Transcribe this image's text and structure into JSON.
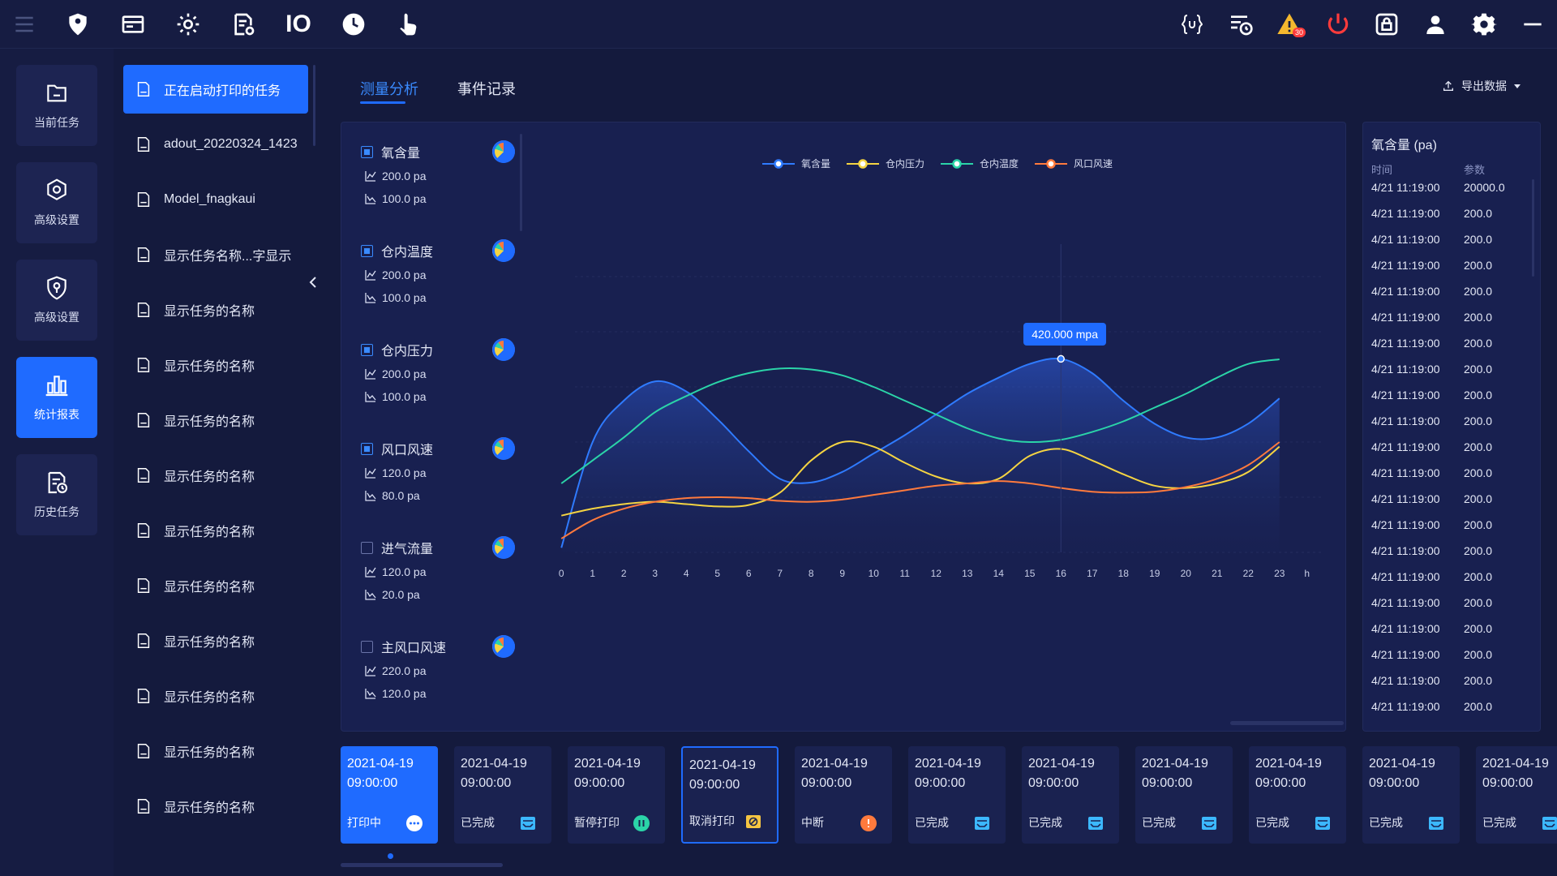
{
  "topbar": {
    "left_icons": [
      "menu-icon",
      "location-pin-icon",
      "card-icon",
      "settings-icon",
      "document-settings-icon",
      "io-icon",
      "clock-icon",
      "hand-touch-icon"
    ],
    "io_label": "IO",
    "right_icons": [
      "code-braces-icon",
      "schedule-list-icon",
      "warning-icon",
      "power-icon",
      "lock-icon",
      "user-icon",
      "gear-icon",
      "minimize-icon"
    ],
    "warning_count": "30"
  },
  "leftnav": [
    {
      "label": "当前任务",
      "icon": "folder-icon",
      "active": false
    },
    {
      "label": "高级设置",
      "icon": "settings-icon",
      "active": false
    },
    {
      "label": "高级设置",
      "icon": "shield-icon",
      "active": false
    },
    {
      "label": "统计报表",
      "icon": "bar-chart-icon",
      "active": true
    },
    {
      "label": "历史任务",
      "icon": "history-document-icon",
      "active": false
    }
  ],
  "tasks": [
    {
      "label": "正在启动打印的任务",
      "active": true
    },
    {
      "label": "adout_20220324_1423"
    },
    {
      "label": "Model_fnagkaui"
    },
    {
      "label": "显示任务名称...字显示"
    },
    {
      "label": "显示任务的名称"
    },
    {
      "label": "显示任务的名称"
    },
    {
      "label": "显示任务的名称"
    },
    {
      "label": "显示任务的名称"
    },
    {
      "label": "显示任务的名称"
    },
    {
      "label": "显示任务的名称"
    },
    {
      "label": "显示任务的名称"
    },
    {
      "label": "显示任务的名称"
    },
    {
      "label": "显示任务的名称"
    },
    {
      "label": "显示任务的名称"
    }
  ],
  "tabs": [
    {
      "label": "测量分析",
      "active": true
    },
    {
      "label": "事件记录",
      "active": false
    }
  ],
  "export_label": "导出数据",
  "series_list": [
    {
      "name": "氧含量",
      "checked": true,
      "max": "200.0 pa",
      "min": "100.0 pa"
    },
    {
      "name": "仓内温度",
      "checked": true,
      "max": "200.0 pa",
      "min": "100.0 pa"
    },
    {
      "name": "仓内压力",
      "checked": true,
      "max": "200.0 pa",
      "min": "100.0 pa"
    },
    {
      "name": "风口风速",
      "checked": true,
      "max": "120.0 pa",
      "min": "80.0 pa"
    },
    {
      "name": "进气流量",
      "checked": false,
      "max": "120.0 pa",
      "min": "20.0 pa"
    },
    {
      "name": "主风口风速",
      "checked": false,
      "max": "220.0 pa",
      "min": "120.0 pa"
    }
  ],
  "tooltip": "420.000 mpa",
  "chart_data": {
    "type": "line",
    "x": [
      "0",
      "1",
      "2",
      "3",
      "4",
      "5",
      "6",
      "7",
      "8",
      "9",
      "10",
      "11",
      "12",
      "13",
      "14",
      "15",
      "16",
      "17",
      "18",
      "19",
      "20",
      "21",
      "22",
      "23"
    ],
    "x_unit": "h",
    "legend": [
      "氧含量",
      "仓内压力",
      "仓内温度",
      "风口风速"
    ],
    "colors": {
      "氧含量": "#2f7bff",
      "仓内压力": "#f5d442",
      "仓内温度": "#2bd4a8",
      "风口风速": "#ff7a3d"
    },
    "ylim": [
      0,
      600
    ],
    "series": [
      {
        "name": "氧含量",
        "values": [
          10,
          240,
          330,
          372,
          350,
          290,
          220,
          160,
          152,
          175,
          215,
          255,
          300,
          345,
          380,
          410,
          421,
          390,
          330,
          280,
          250,
          250,
          280,
          335
        ]
      },
      {
        "name": "仓内压力",
        "values": [
          80,
          95,
          105,
          110,
          105,
          100,
          103,
          130,
          200,
          240,
          230,
          195,
          165,
          150,
          160,
          210,
          225,
          200,
          170,
          145,
          140,
          150,
          175,
          230
        ]
      },
      {
        "name": "仓内温度",
        "values": [
          150,
          200,
          250,
          305,
          340,
          370,
          390,
          400,
          398,
          385,
          360,
          330,
          300,
          270,
          248,
          240,
          245,
          262,
          285,
          315,
          345,
          380,
          410,
          420
        ]
      },
      {
        "name": "风口风速",
        "values": [
          30,
          70,
          95,
          110,
          118,
          120,
          118,
          112,
          110,
          115,
          125,
          135,
          145,
          150,
          155,
          150,
          140,
          132,
          130,
          132,
          142,
          160,
          190,
          240
        ]
      }
    ]
  },
  "table": {
    "title": "氧含量 (pa)",
    "col_time": "时间",
    "col_param": "参数",
    "rows": [
      [
        "4/21 11:19:00",
        "20000.0"
      ],
      [
        "4/21 11:19:00",
        "200.0"
      ],
      [
        "4/21 11:19:00",
        "200.0"
      ],
      [
        "4/21 11:19:00",
        "200.0"
      ],
      [
        "4/21 11:19:00",
        "200.0"
      ],
      [
        "4/21 11:19:00",
        "200.0"
      ],
      [
        "4/21 11:19:00",
        "200.0"
      ],
      [
        "4/21 11:19:00",
        "200.0"
      ],
      [
        "4/21 11:19:00",
        "200.0"
      ],
      [
        "4/21 11:19:00",
        "200.0"
      ],
      [
        "4/21 11:19:00",
        "200.0"
      ],
      [
        "4/21 11:19:00",
        "200.0"
      ],
      [
        "4/21 11:19:00",
        "200.0"
      ],
      [
        "4/21 11:19:00",
        "200.0"
      ],
      [
        "4/21 11:19:00",
        "200.0"
      ],
      [
        "4/21 11:19:00",
        "200.0"
      ],
      [
        "4/21 11:19:00",
        "200.0"
      ],
      [
        "4/21 11:19:00",
        "200.0"
      ],
      [
        "4/21 11:19:00",
        "200.0"
      ],
      [
        "4/21 11:19:00",
        "200.0"
      ],
      [
        "4/21 11:19:00",
        "200.0"
      ]
    ]
  },
  "cards": [
    {
      "date": "2021-04-19",
      "time": "09:00:00",
      "status": "打印中",
      "icon": "more-dots-icon",
      "active": true
    },
    {
      "date": "2021-04-19",
      "time": "09:00:00",
      "status": "已完成",
      "icon": "done-tray-icon"
    },
    {
      "date": "2021-04-19",
      "time": "09:00:00",
      "status": "暂停打印",
      "icon": "pause-icon"
    },
    {
      "date": "2021-04-19",
      "time": "09:00:00",
      "status": "取消打印",
      "icon": "cancel-print-icon",
      "outlined": true
    },
    {
      "date": "2021-04-19",
      "time": "09:00:00",
      "status": "中断",
      "icon": "alert-icon"
    },
    {
      "date": "2021-04-19",
      "time": "09:00:00",
      "status": "已完成",
      "icon": "done-tray-icon"
    },
    {
      "date": "2021-04-19",
      "time": "09:00:00",
      "status": "已完成",
      "icon": "done-tray-icon"
    },
    {
      "date": "2021-04-19",
      "time": "09:00:00",
      "status": "已完成",
      "icon": "done-tray-icon"
    },
    {
      "date": "2021-04-19",
      "time": "09:00:00",
      "status": "已完成",
      "icon": "done-tray-icon"
    },
    {
      "date": "2021-04-19",
      "time": "09:00:00",
      "status": "已完成",
      "icon": "done-tray-icon"
    },
    {
      "date": "2021-04-19",
      "time": "09:00:00",
      "status": "已完成",
      "icon": "done-tray-icon"
    }
  ]
}
